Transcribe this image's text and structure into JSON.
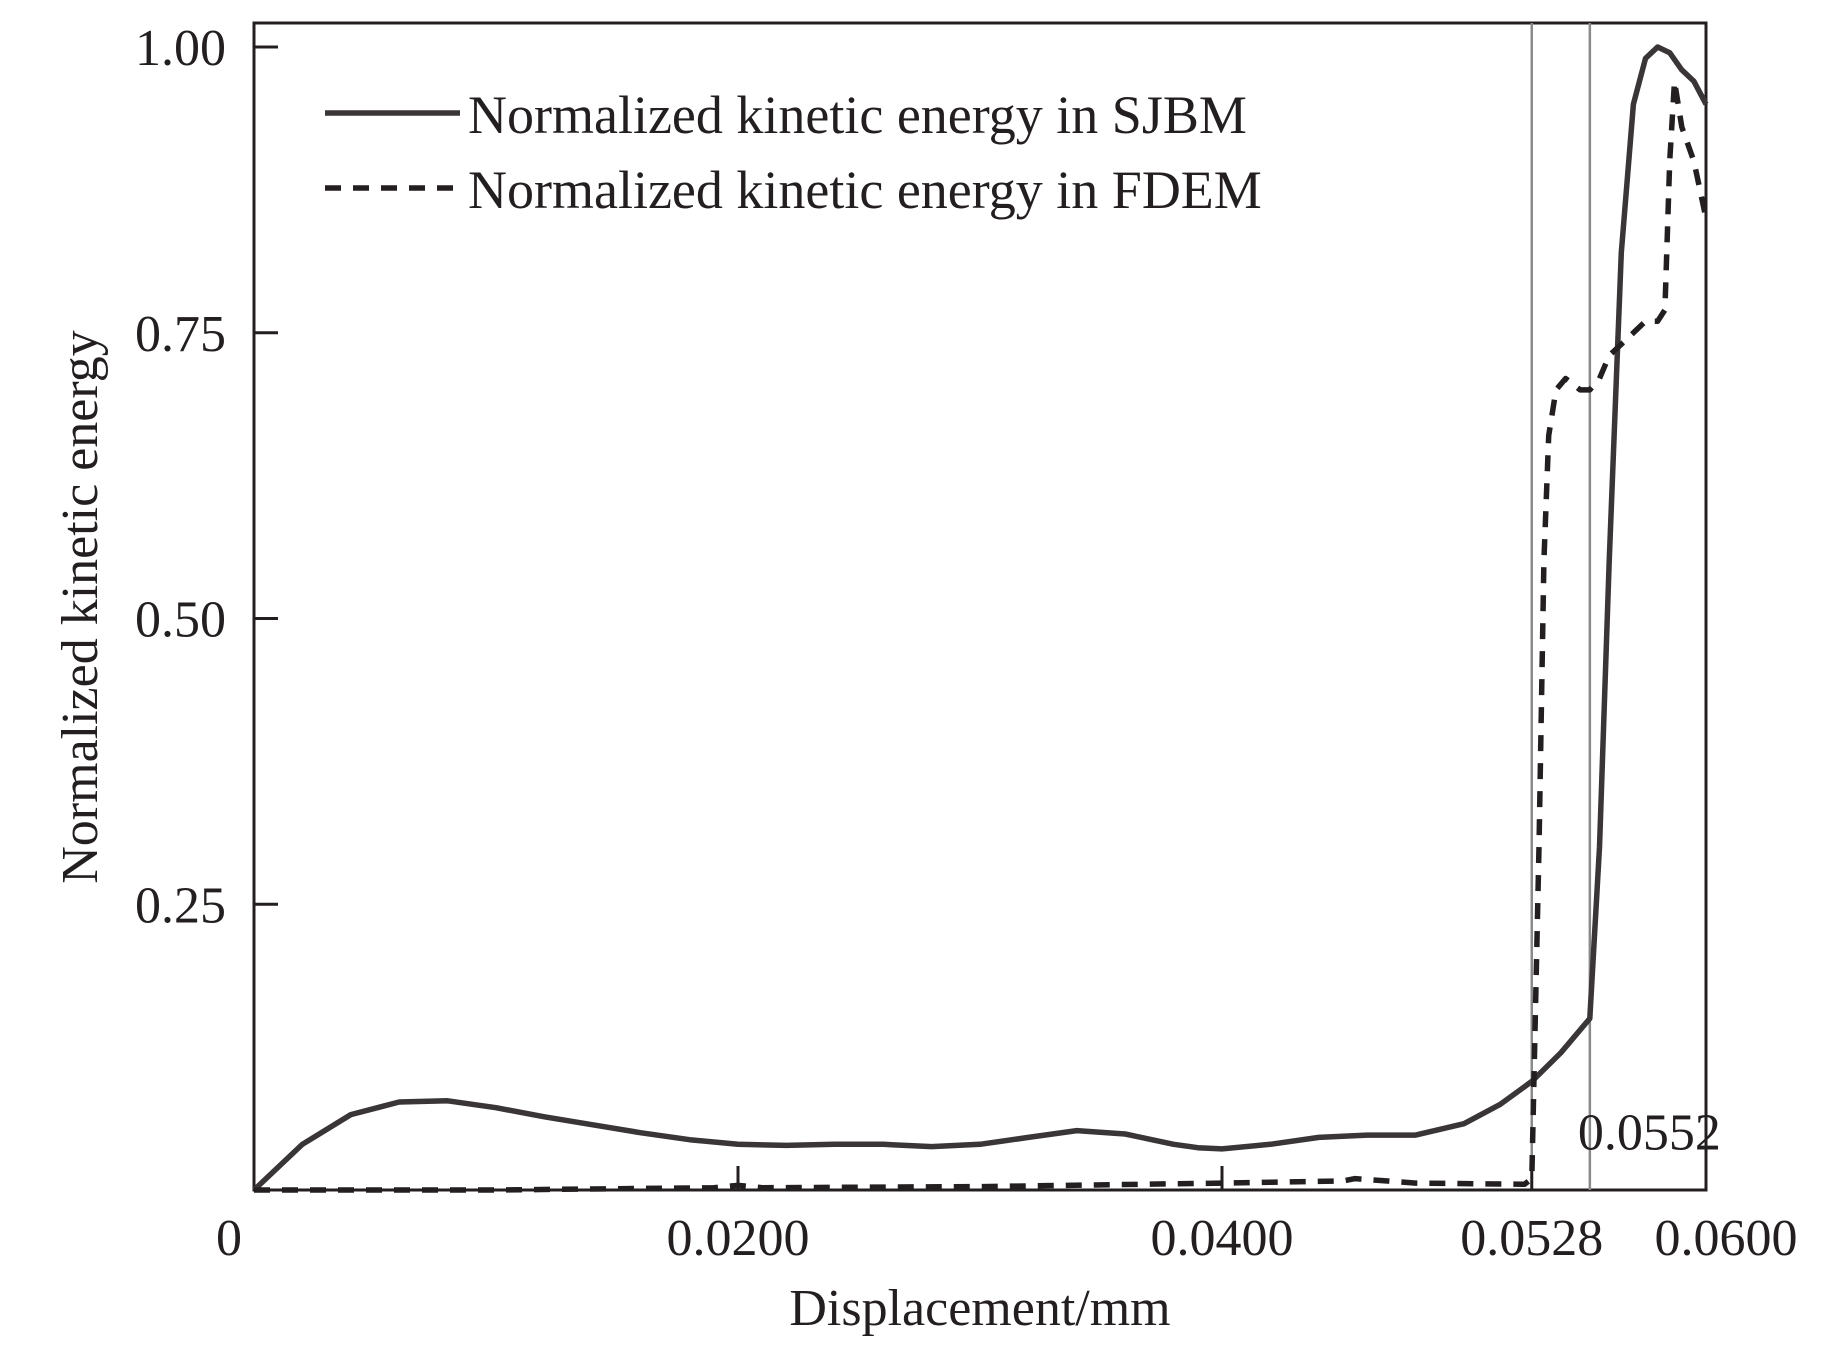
{
  "chart_data": {
    "type": "line",
    "xlabel": "Displacement/mm",
    "ylabel": "Normalized kinetic energy",
    "xlim": [
      0,
      0.06
    ],
    "ylim": [
      0,
      1.0
    ],
    "x_ticks": [
      {
        "value": 0,
        "label": "0"
      },
      {
        "value": 0.02,
        "label": "0.0200"
      },
      {
        "value": 0.04,
        "label": "0.0400"
      },
      {
        "value": 0.0528,
        "label": "0.0528"
      },
      {
        "value": 0.06,
        "label": "0.0600"
      }
    ],
    "y_ticks": [
      {
        "value": 0.25,
        "label": "0.25"
      },
      {
        "value": 0.5,
        "label": "0.50"
      },
      {
        "value": 0.75,
        "label": "0.75"
      },
      {
        "value": 1.0,
        "label": "1.00"
      }
    ],
    "reference_lines": [
      {
        "x": 0.0528
      },
      {
        "x": 0.0552
      }
    ],
    "annotations": [
      {
        "text": "0.0552",
        "x": 0.0552,
        "y": 0.03
      }
    ],
    "legend_position": "top-left",
    "series": [
      {
        "name": "Normalized kinetic energy in SJBM",
        "style": "solid",
        "color": "#3a3536",
        "x": [
          0,
          0.002,
          0.004,
          0.006,
          0.008,
          0.01,
          0.012,
          0.014,
          0.016,
          0.018,
          0.02,
          0.022,
          0.024,
          0.026,
          0.028,
          0.03,
          0.032,
          0.034,
          0.036,
          0.038,
          0.039,
          0.04,
          0.042,
          0.044,
          0.046,
          0.048,
          0.05,
          0.0515,
          0.0528,
          0.054,
          0.0552,
          0.0556,
          0.056,
          0.0565,
          0.057,
          0.0575,
          0.058,
          0.0585,
          0.059,
          0.0595,
          0.06
        ],
        "y": [
          0,
          0.04,
          0.066,
          0.077,
          0.078,
          0.072,
          0.064,
          0.057,
          0.05,
          0.044,
          0.04,
          0.039,
          0.04,
          0.04,
          0.038,
          0.04,
          0.046,
          0.052,
          0.049,
          0.04,
          0.037,
          0.036,
          0.04,
          0.046,
          0.048,
          0.048,
          0.058,
          0.075,
          0.095,
          0.12,
          0.15,
          0.3,
          0.55,
          0.82,
          0.95,
          0.99,
          1.0,
          0.995,
          0.98,
          0.97,
          0.95
        ]
      },
      {
        "name": "Normalized kinetic energy in FDEM",
        "style": "dashed",
        "color": "#231f20",
        "x": [
          0,
          0.01,
          0.019,
          0.02,
          0.021,
          0.03,
          0.04,
          0.045,
          0.0455,
          0.048,
          0.0525,
          0.0528,
          0.0531,
          0.0533,
          0.0535,
          0.0538,
          0.0542,
          0.0548,
          0.0552,
          0.0556,
          0.056,
          0.0565,
          0.057,
          0.0575,
          0.058,
          0.0583,
          0.0585,
          0.0587,
          0.059,
          0.0595,
          0.0598,
          0.06
        ],
        "y": [
          0,
          0,
          0.002,
          0.004,
          0.002,
          0.003,
          0.006,
          0.008,
          0.01,
          0.006,
          0.005,
          0.01,
          0.3,
          0.55,
          0.66,
          0.7,
          0.71,
          0.7,
          0.7,
          0.71,
          0.73,
          0.74,
          0.75,
          0.76,
          0.76,
          0.77,
          0.9,
          0.97,
          0.93,
          0.9,
          0.87,
          0.85
        ]
      }
    ]
  }
}
